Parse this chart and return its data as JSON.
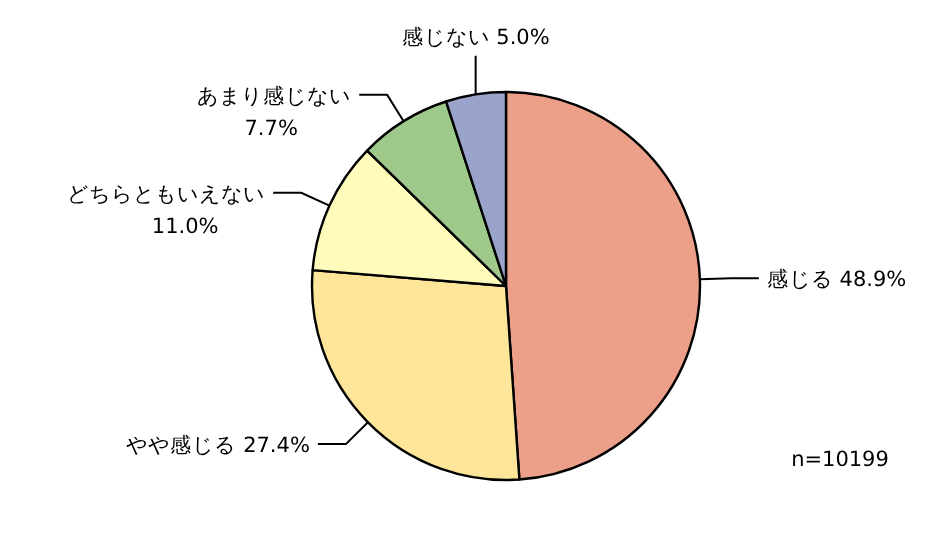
{
  "chart_data": {
    "type": "pie",
    "categories": [
      "感じる",
      "やや感じる",
      "どちらともいえない",
      "あまり感じない",
      "感じない"
    ],
    "values": [
      48.9,
      27.4,
      11.0,
      7.7,
      5.0
    ],
    "value_labels": [
      "48.9%",
      "27.4%",
      "11.0%",
      "7.7%",
      "5.0%"
    ],
    "colors": [
      "#ec9f89",
      "#fde699",
      "#fefbbb",
      "#9fc98b",
      "#9aa3c9"
    ],
    "annotations": [
      "n=10199"
    ]
  }
}
